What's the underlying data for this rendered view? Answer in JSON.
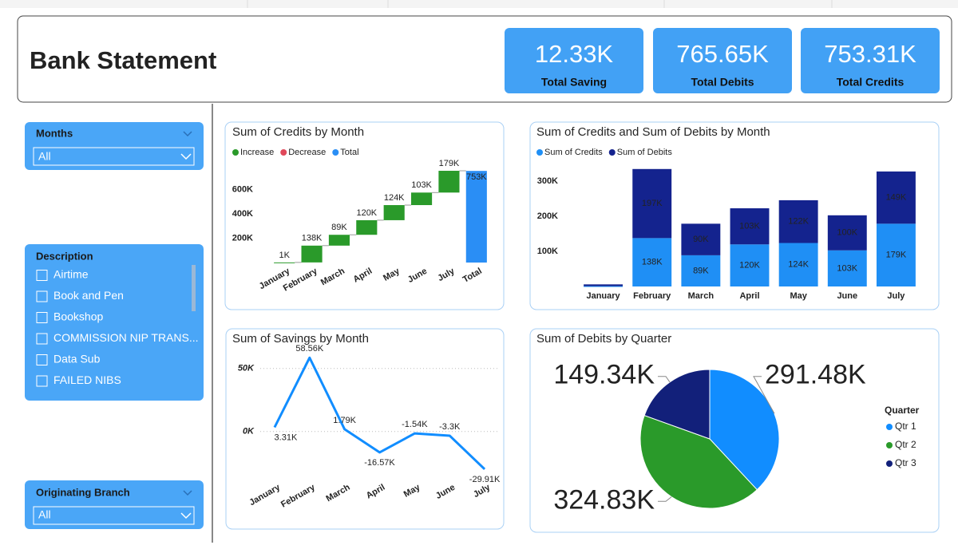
{
  "header": {
    "title": "Bank Statement"
  },
  "kpis": [
    {
      "value": "12.33K",
      "label": "Total Saving"
    },
    {
      "value": "765.65K",
      "label": "Total Debits"
    },
    {
      "value": "753.31K",
      "label": "Total Credits"
    }
  ],
  "slicers": {
    "months": {
      "title": "Months",
      "selection": "All"
    },
    "description": {
      "title": "Description",
      "items": [
        "Airtime",
        "Book and Pen",
        "Bookshop",
        "COMMISSION NIP TRANS...",
        "Data Sub",
        "FAILED NIBS"
      ]
    },
    "branch": {
      "title": "Originating Branch",
      "selection": "All"
    }
  },
  "chart_data": [
    {
      "type": "waterfall",
      "title": "Sum of Credits by Month",
      "legend": [
        {
          "name": "Increase",
          "color": "#2a9a2a"
        },
        {
          "name": "Decrease",
          "color": "#e0485a"
        },
        {
          "name": "Total",
          "color": "#2a8ef5"
        }
      ],
      "categories": [
        "January",
        "February",
        "March",
        "April",
        "May",
        "June",
        "July",
        "Total"
      ],
      "values": [
        1000,
        138000,
        89000,
        120000,
        124000,
        103000,
        179000,
        753000
      ],
      "value_labels": [
        "1K",
        "138K",
        "89K",
        "120K",
        "124K",
        "103K",
        "179K",
        "753K"
      ],
      "ylim": [
        0,
        800000
      ],
      "yticks": [
        {
          "value": 200000,
          "label": "200K"
        },
        {
          "value": 400000,
          "label": "400K"
        },
        {
          "value": 600000,
          "label": "600K"
        }
      ]
    },
    {
      "type": "stacked_bar",
      "title": "Sum of Credits and Sum of Debits by Month",
      "categories": [
        "January",
        "February",
        "March",
        "April",
        "May",
        "June",
        "July"
      ],
      "series": [
        {
          "name": "Sum of Credits",
          "color": "#1f8ff5",
          "values": [
            1000,
            138000,
            89000,
            120000,
            124000,
            103000,
            179000
          ],
          "value_labels": [
            null,
            "138K",
            "89K",
            "120K",
            "124K",
            "103K",
            "179K"
          ]
        },
        {
          "name": "Sum of Debits",
          "color": "#14238e",
          "values": [
            5000,
            197000,
            90000,
            103000,
            122000,
            100000,
            149000
          ],
          "value_labels": [
            null,
            "197K",
            "90K",
            "103K",
            "122K",
            "100K",
            "149K"
          ]
        }
      ],
      "ylim": [
        0,
        330000
      ],
      "yticks": [
        {
          "value": 100000,
          "label": "100K"
        },
        {
          "value": 200000,
          "label": "200K"
        },
        {
          "value": 300000,
          "label": "300K"
        }
      ]
    },
    {
      "type": "line",
      "title": "Sum of Savings by Month",
      "categories": [
        "January",
        "February",
        "March",
        "April",
        "May",
        "June",
        "July"
      ],
      "values": [
        3310,
        58560,
        1790,
        -16570,
        -1540,
        -3300,
        -29910
      ],
      "value_labels": [
        "3.31K",
        "58.56K",
        "1.79K",
        "-16.57K",
        "-1.54K",
        "-3.3K",
        "-29.91K"
      ],
      "color": "#118dff",
      "grid": true,
      "ylim": [
        -35000,
        60000
      ],
      "yticks": [
        {
          "value": 0,
          "label": "0K"
        },
        {
          "value": 50000,
          "label": "50K"
        }
      ]
    },
    {
      "type": "pie",
      "title": "Sum of Debits by Quarter",
      "legend_title": "Quarter",
      "categories": [
        "Qtr 1",
        "Qtr 2",
        "Qtr 3"
      ],
      "values": [
        291480,
        324830,
        149340
      ],
      "value_labels": [
        "291.48K",
        "324.83K",
        "149.34K"
      ],
      "colors": [
        "#118dff",
        "#2a9a2a",
        "#12207a"
      ]
    }
  ]
}
